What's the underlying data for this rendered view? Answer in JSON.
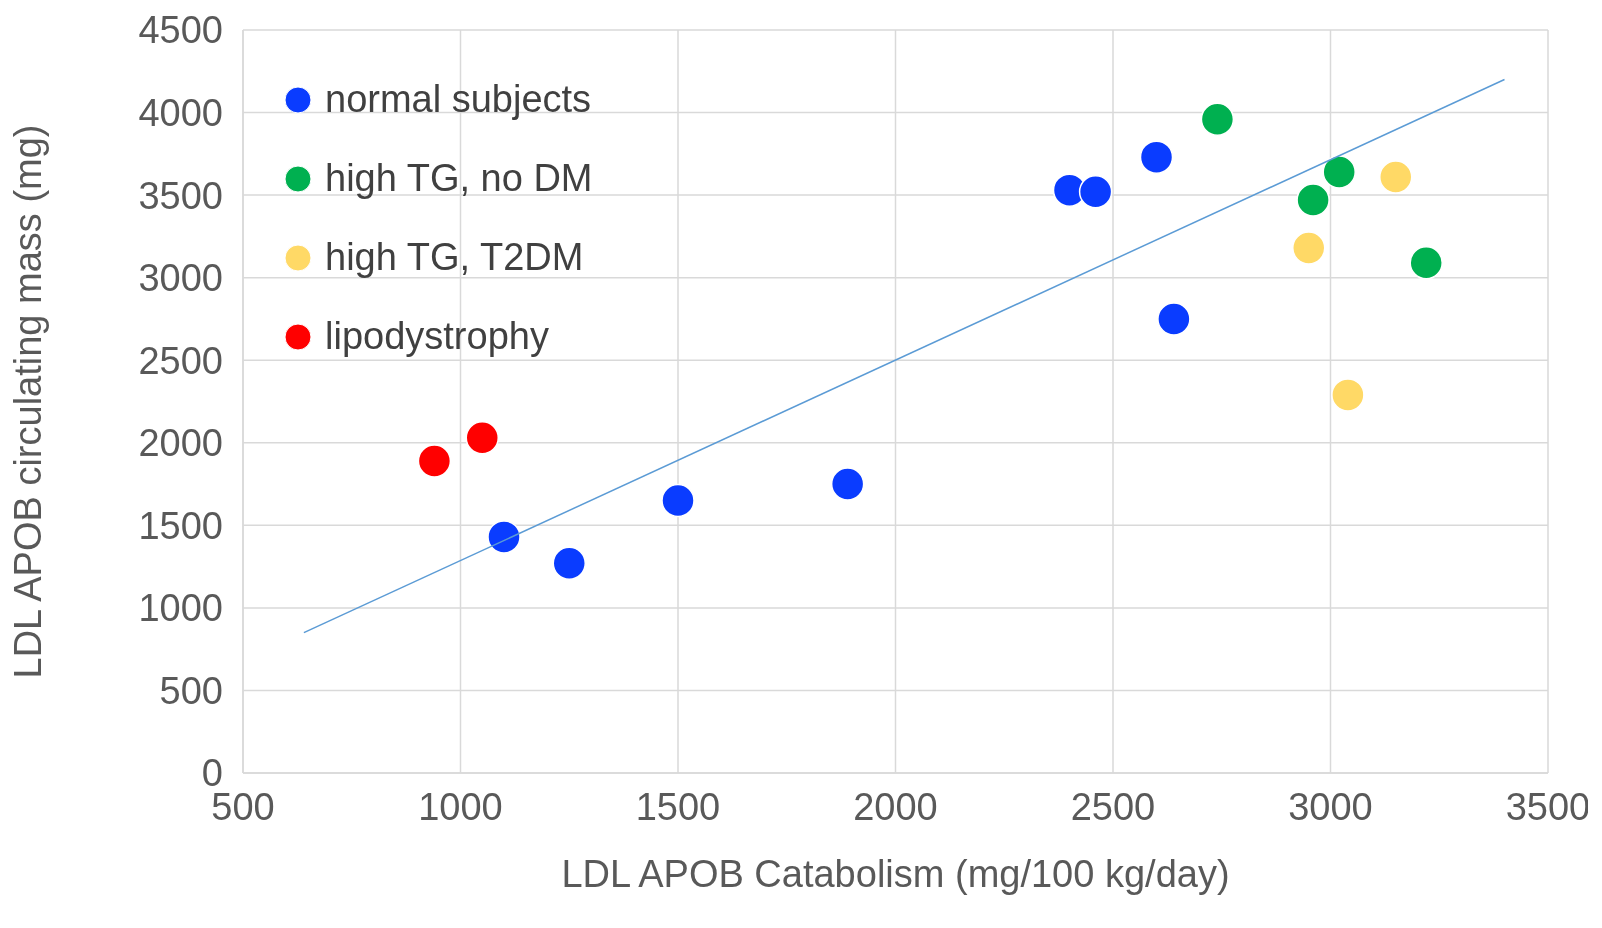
{
  "chart_data": {
    "type": "scatter",
    "xlabel": "LDL APOB Catabolism (mg/100 kg/day)",
    "ylabel": "LDL APOB circulating mass (mg)",
    "xlim": [
      500,
      3500
    ],
    "xticks": [
      500,
      1000,
      1500,
      2000,
      2500,
      3000,
      3500
    ],
    "ylim": [
      0,
      4500
    ],
    "yticks": [
      0,
      500,
      1000,
      1500,
      2000,
      2500,
      3000,
      3500,
      4000,
      4500
    ],
    "grid": true,
    "legend": "top left",
    "marker": "circle",
    "series": [
      {
        "name": "normal subjects",
        "color": "#0a3cff",
        "x": [
          2400,
          2460,
          2600,
          2640,
          1100,
          1250,
          1500,
          1890
        ],
        "values": [
          3530,
          3520,
          3730,
          2750,
          1430,
          1270,
          1650,
          1750
        ]
      },
      {
        "name": "high TG, no DM",
        "color": "#00b050",
        "x": [
          2740,
          3020,
          2960,
          3220
        ],
        "values": [
          3960,
          3640,
          3470,
          3090
        ]
      },
      {
        "name": "high TG, T2DM",
        "color": "#ffd966",
        "x": [
          3150,
          2950,
          3040
        ],
        "values": [
          3610,
          3180,
          2290
        ]
      },
      {
        "name": "lipodystrophy",
        "color": "#ff0000",
        "x": [
          940,
          1050
        ],
        "values": [
          1890,
          2030
        ]
      },
      {
        "type": "line",
        "marker": "none",
        "color": "#5b9bd5",
        "x": [
          640,
          3400
        ],
        "values": [
          850,
          4200
        ]
      }
    ]
  }
}
